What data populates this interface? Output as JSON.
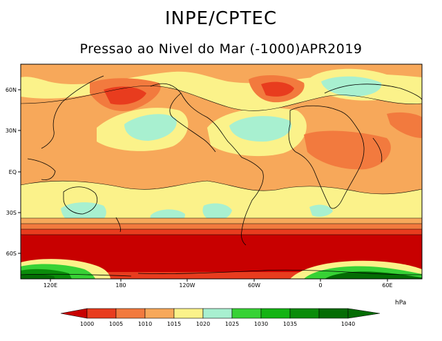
{
  "header": {
    "title": "INPE/CPTEC",
    "subtitle": "Pressao ao Nivel do Mar (-1000)APR2019"
  },
  "map": {
    "lat_labels": [
      "60N",
      "30N",
      "EQ",
      "30S",
      "60S"
    ],
    "lon_labels": [
      "120E",
      "180",
      "120W",
      "60W",
      "0",
      "60E"
    ]
  },
  "colorbar": {
    "unit": "hPa",
    "levels": [
      "1000",
      "1005",
      "1010",
      "1015",
      "1020",
      "1025",
      "1030",
      "1035",
      "1040"
    ],
    "colors": {
      "below_1000": "#c80000",
      "b1000_1005": "#e83c1e",
      "b1005_1010": "#f27a3e",
      "b1010_1015": "#f7a85a",
      "b1015_1020": "#fbf28a",
      "b1020_1025": "#a8f0d0",
      "b1025_1030": "#37d235",
      "b1030_1035": "#14b414",
      "b1035_1040": "#0a8c0a",
      "above_1040": "#046c04"
    }
  }
}
